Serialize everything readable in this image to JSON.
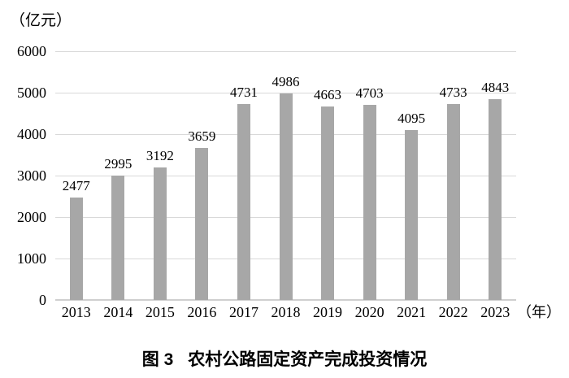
{
  "figure": {
    "unit_label": "（亿元）",
    "x_unit_label": "（年）",
    "caption_prefix": "图 3",
    "caption_text": "农村公路固定资产完成投资情况"
  },
  "chart_data": {
    "type": "bar",
    "title": "图 3 农村公路固定资产完成投资情况",
    "categories": [
      "2013",
      "2014",
      "2015",
      "2016",
      "2017",
      "2018",
      "2019",
      "2020",
      "2021",
      "2022",
      "2023"
    ],
    "values": [
      2477,
      2995,
      3192,
      3659,
      4731,
      4986,
      4663,
      4703,
      4095,
      4733,
      4843
    ],
    "xlabel": "年",
    "ylabel": "亿元",
    "ylim": [
      0,
      6000
    ],
    "ytick_step": 1000,
    "grid": true,
    "legend": "none",
    "value_labels_shown": true,
    "bar_color": "#a7a7a7",
    "gridline_color": "#d9d9d9",
    "axis_line_color": "#cfcfcf",
    "text_color": "#000000"
  }
}
